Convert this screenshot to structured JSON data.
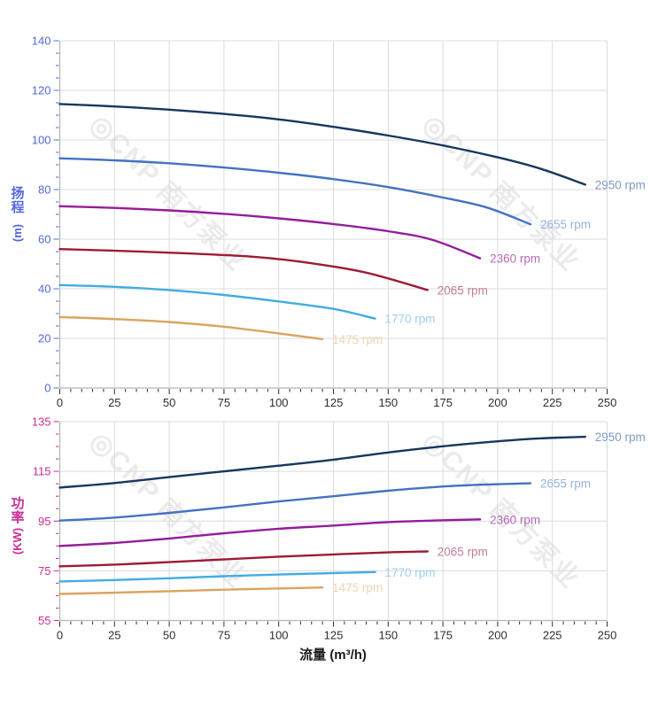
{
  "page": {
    "background": "#ffffff"
  },
  "watermark": {
    "text": "◎CNP 南方泵业",
    "color": "#d9d9d9",
    "opacity": 0.5
  },
  "axis_titles": {
    "head": {
      "chars": [
        "扬",
        "程"
      ],
      "unit": "(m)",
      "color": "#5468db"
    },
    "power": {
      "chars": [
        "功",
        "率"
      ],
      "unit": "(KW)",
      "color": "#cb2e96"
    },
    "flow": {
      "label": "流量 (m³/h)",
      "color": "#1b1b1b"
    }
  },
  "chart_data": [
    {
      "type": "line",
      "title": "Head curves",
      "xlabel": "流量 (m³/h)",
      "ylabel": "扬程 (m)",
      "xlim": [
        0,
        250
      ],
      "ylim": [
        0,
        140
      ],
      "x_major": 25,
      "x_minor": 5,
      "y_major": 20,
      "y_minor": 5,
      "grid": true,
      "legend_position": "curve-ends",
      "y_tick_color": "#5468db",
      "x_tick_color": "#2e2e2e",
      "series": [
        {
          "name": "2950 rpm",
          "color": "#17375e",
          "label_color": "#7f9ac4",
          "points": [
            [
              0,
              114.5
            ],
            [
              25,
              113.5
            ],
            [
              50,
              112.2
            ],
            [
              75,
              110.5
            ],
            [
              100,
              108.3
            ],
            [
              125,
              105.3
            ],
            [
              150,
              101.8
            ],
            [
              175,
              97.8
            ],
            [
              200,
              93
            ],
            [
              220,
              88.3
            ],
            [
              240,
              82
            ]
          ]
        },
        {
          "name": "2655 rpm",
          "color": "#4472c4",
          "label_color": "#98b3e0",
          "points": [
            [
              0,
              92.6
            ],
            [
              25,
              91.8
            ],
            [
              50,
              90.6
            ],
            [
              75,
              88.9
            ],
            [
              100,
              86.8
            ],
            [
              125,
              84.2
            ],
            [
              150,
              81
            ],
            [
              175,
              76.8
            ],
            [
              195,
              72.8
            ],
            [
              215,
              66
            ]
          ]
        },
        {
          "name": "2360 rpm",
          "color": "#951c9b",
          "label_color": "#b56bbd",
          "points": [
            [
              0,
              73.3
            ],
            [
              25,
              72.6
            ],
            [
              50,
              71.6
            ],
            [
              75,
              70.2
            ],
            [
              100,
              68.4
            ],
            [
              125,
              66.1
            ],
            [
              150,
              63.2
            ],
            [
              170,
              59.8
            ],
            [
              192,
              52.3
            ]
          ]
        },
        {
          "name": "2065 rpm",
          "color": "#9d1b36",
          "label_color": "#c17d9b",
          "points": [
            [
              0,
              56
            ],
            [
              30,
              55.2
            ],
            [
              60,
              54.2
            ],
            [
              90,
              52.8
            ],
            [
              115,
              50.3
            ],
            [
              140,
              46.5
            ],
            [
              168,
              39.5
            ]
          ]
        },
        {
          "name": "1770 rpm",
          "color": "#42ace2",
          "label_color": "#9ecdec",
          "points": [
            [
              0,
              41.5
            ],
            [
              25,
              40.8
            ],
            [
              50,
              39.5
            ],
            [
              75,
              37.5
            ],
            [
              100,
              34.9
            ],
            [
              125,
              31.9
            ],
            [
              144,
              28
            ]
          ]
        },
        {
          "name": "1475 rpm",
          "color": "#d8a55f",
          "label_color": "#ead7b2",
          "points": [
            [
              0,
              28.6
            ],
            [
              25,
              27.8
            ],
            [
              50,
              26.6
            ],
            [
              75,
              24.7
            ],
            [
              100,
              22
            ],
            [
              120,
              19.7
            ]
          ]
        }
      ]
    },
    {
      "type": "line",
      "title": "Power curves",
      "xlabel": "流量 (m³/h)",
      "ylabel": "功率 (KW)",
      "xlim": [
        0,
        250
      ],
      "ylim": [
        55,
        135
      ],
      "x_major": 25,
      "x_minor": 5,
      "y_major": 20,
      "y_minor": 5,
      "grid": true,
      "legend_position": "curve-ends",
      "y_tick_color": "#cb2e96",
      "x_tick_color": "#2e2e2e",
      "series": [
        {
          "name": "2950 rpm",
          "color": "#17375e",
          "label_color": "#7f9ac4",
          "points": [
            [
              0,
              108.5
            ],
            [
              25,
              110.3
            ],
            [
              50,
              112.7
            ],
            [
              75,
              115
            ],
            [
              100,
              117.3
            ],
            [
              125,
              119.7
            ],
            [
              150,
              122.6
            ],
            [
              175,
              125.1
            ],
            [
              200,
              127.1
            ],
            [
              220,
              128.3
            ],
            [
              240,
              128.9
            ]
          ]
        },
        {
          "name": "2655 rpm",
          "color": "#4472c4",
          "label_color": "#98b3e0",
          "points": [
            [
              0,
              95.2
            ],
            [
              25,
              96.4
            ],
            [
              50,
              98.3
            ],
            [
              75,
              100.5
            ],
            [
              100,
              102.9
            ],
            [
              125,
              105
            ],
            [
              150,
              107.2
            ],
            [
              175,
              108.9
            ],
            [
              195,
              109.7
            ],
            [
              215,
              110.2
            ]
          ]
        },
        {
          "name": "2360 rpm",
          "color": "#951c9b",
          "label_color": "#b56bbd",
          "points": [
            [
              0,
              85
            ],
            [
              25,
              86.2
            ],
            [
              50,
              88
            ],
            [
              75,
              90.1
            ],
            [
              100,
              91.9
            ],
            [
              125,
              93.2
            ],
            [
              150,
              94.6
            ],
            [
              170,
              95.2
            ],
            [
              192,
              95.7
            ]
          ]
        },
        {
          "name": "2065 rpm",
          "color": "#9d1b36",
          "label_color": "#c17d9b",
          "points": [
            [
              0,
              76.8
            ],
            [
              25,
              77.5
            ],
            [
              50,
              78.5
            ],
            [
              75,
              79.6
            ],
            [
              100,
              80.7
            ],
            [
              125,
              81.6
            ],
            [
              150,
              82.4
            ],
            [
              168,
              82.8
            ]
          ]
        },
        {
          "name": "1770 rpm",
          "color": "#42ace2",
          "label_color": "#9ecdec",
          "points": [
            [
              0,
              70.7
            ],
            [
              25,
              71.3
            ],
            [
              50,
              72
            ],
            [
              75,
              72.8
            ],
            [
              100,
              73.5
            ],
            [
              125,
              74.1
            ],
            [
              144,
              74.5
            ]
          ]
        },
        {
          "name": "1475 rpm",
          "color": "#d8a55f",
          "label_color": "#ead7b2",
          "points": [
            [
              0,
              65.7
            ],
            [
              25,
              66.2
            ],
            [
              50,
              66.8
            ],
            [
              75,
              67.4
            ],
            [
              100,
              67.9
            ],
            [
              120,
              68.3
            ]
          ]
        }
      ]
    }
  ]
}
